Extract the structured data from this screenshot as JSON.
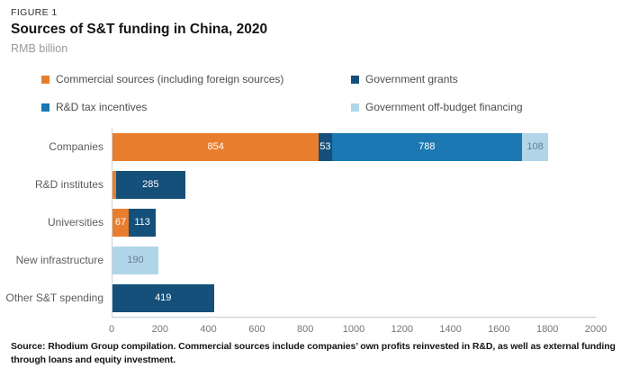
{
  "figure": {
    "label": "FIGURE 1",
    "title": "Sources of S&T funding in China, 2020",
    "subtitle": "RMB billion"
  },
  "legend": [
    {
      "id": "commercial",
      "label": "Commercial sources (including foreign sources)",
      "color": "#E87E2D"
    },
    {
      "id": "grants",
      "label": "Government grants",
      "color": "#14507A"
    },
    {
      "id": "tax",
      "label": "R&D tax incentives",
      "color": "#1B78B2"
    },
    {
      "id": "offbudget",
      "label": "Government off-budget financing",
      "color": "#B1D5E9"
    }
  ],
  "chart_data": {
    "type": "bar",
    "orientation": "horizontal-stacked",
    "title": "Sources of S&T funding in China, 2020",
    "unit": "RMB billion",
    "categories": [
      "Companies",
      "R&D institutes",
      "Universities",
      "New infrastructure",
      "Other S&T spending"
    ],
    "series": [
      {
        "id": "commercial",
        "name": "Commercial sources (including foreign sources)",
        "color": "#E87E2D",
        "label_color": "#ffffff",
        "values": [
          854,
          15,
          67,
          0,
          0
        ]
      },
      {
        "id": "grants",
        "name": "Government grants",
        "color": "#14507A",
        "label_color": "#ffffff",
        "values": [
          53,
          285,
          113,
          0,
          419
        ]
      },
      {
        "id": "tax",
        "name": "R&D tax incentives",
        "color": "#1B78B2",
        "label_color": "#ffffff",
        "values": [
          788,
          0,
          0,
          0,
          0
        ]
      },
      {
        "id": "offbudget",
        "name": "Government off-budget financing",
        "color": "#B1D5E9",
        "label_color": "#647E8E",
        "values": [
          108,
          0,
          0,
          190,
          0
        ]
      }
    ],
    "xlim": [
      0,
      2000
    ],
    "xticks": [
      0,
      200,
      400,
      600,
      800,
      1000,
      1200,
      1400,
      1600,
      1800,
      2000
    ],
    "label_min_value": 25,
    "grid": false,
    "legend_position": "top"
  },
  "source": "Source: Rhodium Group compilation. Commercial sources include companies’ own profits reinvested in R&D, as well as external funding through loans and equity investment."
}
